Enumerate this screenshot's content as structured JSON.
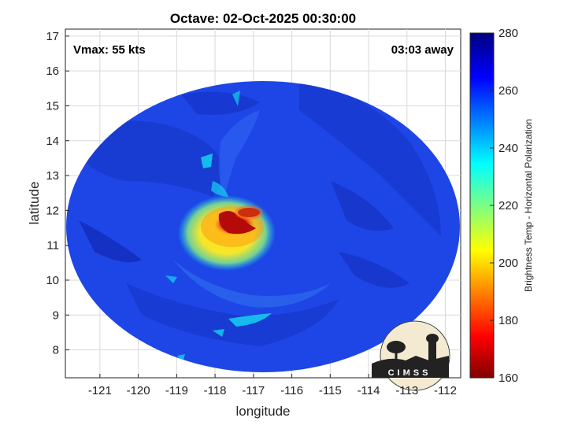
{
  "title": "Octave: 02-Oct-2025 00:30:00",
  "annotations": {
    "vmax": "Vmax: 55 kts",
    "away": "03:03 away"
  },
  "axes": {
    "xlabel": "longitude",
    "ylabel": "latitude",
    "xlim": [
      -121.9,
      -111.6
    ],
    "ylim": [
      7.2,
      17.2
    ],
    "xticks": [
      "-121",
      "-120",
      "-119",
      "-118",
      "-117",
      "-116",
      "-115",
      "-114",
      "-113",
      "-112"
    ],
    "yticks": [
      "8",
      "9",
      "10",
      "11",
      "12",
      "13",
      "14",
      "15",
      "16",
      "17"
    ]
  },
  "colorbar": {
    "label": "Brightness Temp - Horizontal Polarization",
    "ticks": [
      "160",
      "180",
      "200",
      "220",
      "240",
      "260",
      "280"
    ],
    "range": [
      160,
      280
    ],
    "colormap": "jet"
  },
  "logo": {
    "text": "CIMSS"
  },
  "colors": {
    "background_blue": "#1e46e6",
    "deep_blue": "#0f28b4",
    "cold_core_red": "#b40a0a",
    "ring_yellow": "#ffe619",
    "cyan": "#14d2f0"
  },
  "storm_center": {
    "lon": -117.6,
    "lat": 11.4
  }
}
